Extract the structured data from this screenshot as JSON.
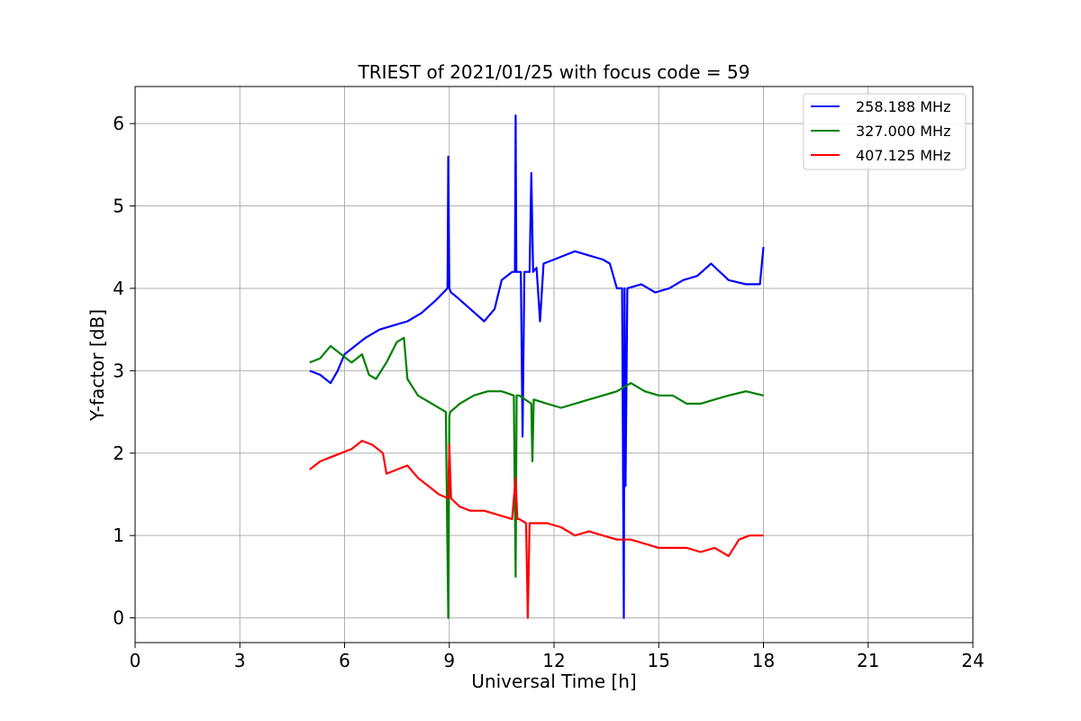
{
  "chart_data": {
    "type": "line",
    "title": "TRIEST of 2021/01/25 with focus code = 59",
    "xlabel": "Universal Time [h]",
    "ylabel": "Y-factor [dB]",
    "xlim": [
      0,
      24
    ],
    "ylim": [
      -0.3,
      6.45
    ],
    "xticks": [
      0,
      3,
      6,
      9,
      12,
      15,
      18,
      21,
      24
    ],
    "yticks": [
      0,
      1,
      2,
      3,
      4,
      5,
      6
    ],
    "grid": true,
    "legend_position": "top-right",
    "series": [
      {
        "name": "258.188 MHz",
        "color": "#0000ff",
        "x": [
          5.0,
          5.3,
          5.6,
          5.8,
          6.0,
          6.3,
          6.6,
          7.0,
          7.4,
          7.8,
          8.2,
          8.6,
          8.95,
          8.97,
          9.0,
          9.05,
          9.2,
          9.6,
          10.0,
          10.3,
          10.5,
          10.8,
          10.88,
          10.9,
          10.92,
          10.95,
          11.05,
          11.1,
          11.15,
          11.3,
          11.35,
          11.4,
          11.5,
          11.6,
          11.7,
          12.0,
          12.3,
          12.6,
          13.0,
          13.4,
          13.6,
          13.8,
          13.95,
          14.0,
          14.02,
          14.05,
          14.1,
          14.5,
          14.9,
          15.3,
          15.7,
          16.1,
          16.5,
          17.0,
          17.5,
          17.9,
          18.0
        ],
        "y": [
          3.0,
          2.95,
          2.85,
          3.0,
          3.2,
          3.3,
          3.4,
          3.5,
          3.55,
          3.6,
          3.7,
          3.85,
          4.0,
          5.6,
          4.0,
          3.95,
          3.9,
          3.75,
          3.6,
          3.75,
          4.1,
          4.2,
          4.2,
          6.1,
          4.2,
          4.2,
          4.2,
          2.2,
          4.2,
          4.2,
          5.4,
          4.2,
          4.25,
          3.6,
          4.3,
          4.35,
          4.4,
          4.45,
          4.4,
          4.35,
          4.3,
          4.0,
          4.0,
          0.0,
          4.0,
          1.6,
          4.0,
          4.05,
          3.95,
          4.0,
          4.1,
          4.15,
          4.3,
          4.1,
          4.05,
          4.05,
          4.5
        ]
      },
      {
        "name": "327.000 MHz",
        "color": "#008000",
        "x": [
          5.0,
          5.3,
          5.6,
          5.9,
          6.2,
          6.5,
          6.7,
          6.9,
          7.2,
          7.5,
          7.7,
          7.8,
          8.1,
          8.5,
          8.9,
          8.97,
          9.0,
          9.03,
          9.3,
          9.7,
          10.1,
          10.5,
          10.85,
          10.9,
          10.93,
          11.0,
          11.35,
          11.38,
          11.42,
          11.8,
          12.2,
          12.6,
          13.0,
          13.4,
          13.8,
          14.2,
          14.6,
          15.0,
          15.4,
          15.8,
          16.2,
          16.6,
          17.0,
          17.5,
          18.0
        ],
        "y": [
          3.1,
          3.15,
          3.3,
          3.2,
          3.1,
          3.2,
          2.95,
          2.9,
          3.1,
          3.35,
          3.4,
          2.9,
          2.7,
          2.6,
          2.5,
          0.0,
          2.45,
          2.5,
          2.6,
          2.7,
          2.75,
          2.75,
          2.7,
          0.5,
          2.7,
          2.7,
          2.6,
          1.9,
          2.65,
          2.6,
          2.55,
          2.6,
          2.65,
          2.7,
          2.75,
          2.85,
          2.75,
          2.7,
          2.7,
          2.6,
          2.6,
          2.65,
          2.7,
          2.75,
          2.7
        ]
      },
      {
        "name": "407.125 MHz",
        "color": "#ff0000",
        "x": [
          5.0,
          5.3,
          5.6,
          5.9,
          6.2,
          6.5,
          6.8,
          7.1,
          7.2,
          7.5,
          7.8,
          8.1,
          8.4,
          8.7,
          8.97,
          9.0,
          9.05,
          9.3,
          9.6,
          10.0,
          10.4,
          10.8,
          10.9,
          10.95,
          11.0,
          11.2,
          11.25,
          11.3,
          11.35,
          11.5,
          11.8,
          12.2,
          12.6,
          13.0,
          13.4,
          13.8,
          14.2,
          14.6,
          15.0,
          15.4,
          15.8,
          16.2,
          16.6,
          17.0,
          17.3,
          17.6,
          18.0
        ],
        "y": [
          1.8,
          1.9,
          1.95,
          2.0,
          2.05,
          2.15,
          2.1,
          2.0,
          1.75,
          1.8,
          1.85,
          1.7,
          1.6,
          1.5,
          1.45,
          2.1,
          1.45,
          1.35,
          1.3,
          1.3,
          1.25,
          1.2,
          1.7,
          1.2,
          1.2,
          1.15,
          0.0,
          1.15,
          1.15,
          1.15,
          1.15,
          1.1,
          1.0,
          1.05,
          1.0,
          0.95,
          0.95,
          0.9,
          0.85,
          0.85,
          0.85,
          0.8,
          0.85,
          0.75,
          0.95,
          1.0,
          1.0
        ]
      }
    ]
  }
}
